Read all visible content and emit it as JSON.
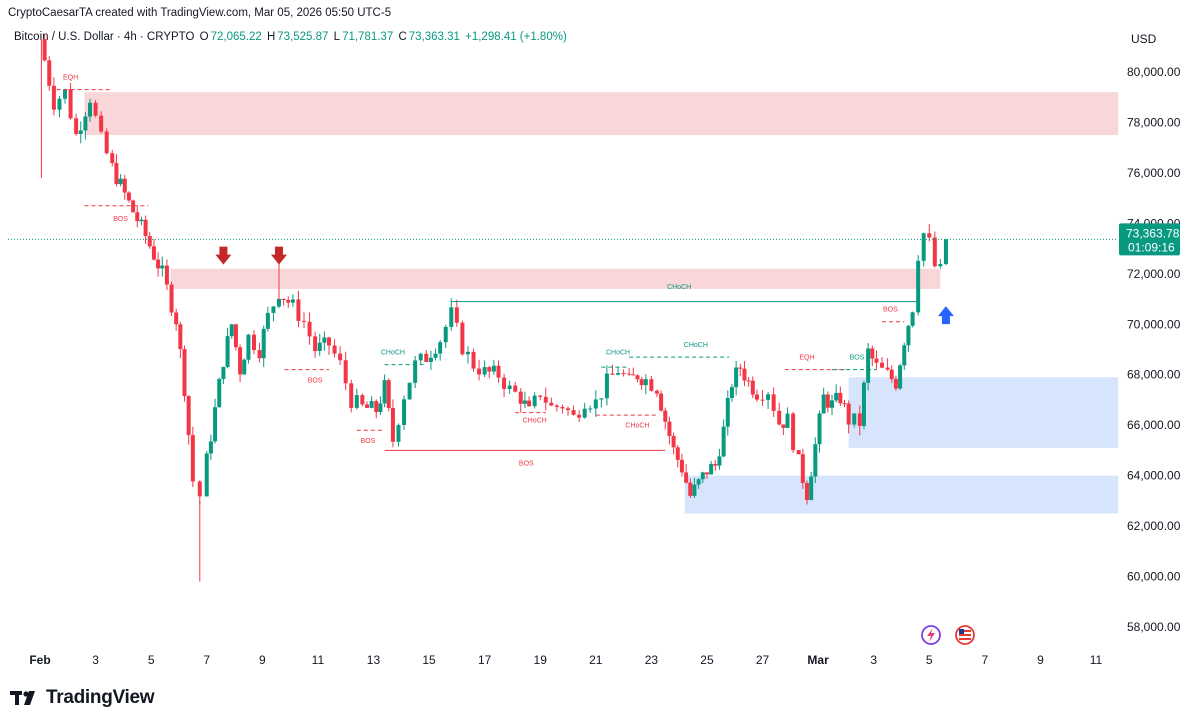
{
  "credit": "CryptoCaesarTA created with TradingView.com, Mar 05, 2026 05:50 UTC-5",
  "legend": {
    "symbol": "Bitcoin / U.S. Dollar · 4h · CRYPTO",
    "open_label": "O",
    "open": "72,065.22",
    "high_label": "H",
    "high": "73,525.87",
    "low_label": "L",
    "low": "71,781.37",
    "close_label": "C",
    "close": "73,363.31",
    "change": "+1,298.41 (+1.80%)"
  },
  "currency": "USD",
  "brand": "TradingView",
  "colors": {
    "up": "#089981",
    "down": "#f23645",
    "supply": "#f7c9cc",
    "demand": "#cfe0fb"
  },
  "chart_data": {
    "type": "candlestick",
    "ylim": [
      57000,
      81000
    ],
    "yticks": [
      "80,000.00",
      "78,000.00",
      "76,000.00",
      "74,000.00",
      "72,000.00",
      "70,000.00",
      "68,000.00",
      "66,000.00",
      "64,000.00",
      "62,000.00",
      "60,000.00",
      "58,000.00"
    ],
    "ytick_values": [
      80000,
      78000,
      76000,
      74000,
      72000,
      70000,
      68000,
      66000,
      64000,
      62000,
      60000,
      58000
    ],
    "xticks": [
      {
        "label": "Feb",
        "day": 1,
        "bold": true
      },
      {
        "label": "3",
        "day": 3
      },
      {
        "label": "5",
        "day": 5
      },
      {
        "label": "7",
        "day": 7
      },
      {
        "label": "9",
        "day": 9
      },
      {
        "label": "11",
        "day": 11
      },
      {
        "label": "13",
        "day": 13
      },
      {
        "label": "15",
        "day": 15
      },
      {
        "label": "17",
        "day": 17
      },
      {
        "label": "19",
        "day": 19
      },
      {
        "label": "21",
        "day": 21
      },
      {
        "label": "23",
        "day": 23
      },
      {
        "label": "25",
        "day": 25
      },
      {
        "label": "27",
        "day": 27
      },
      {
        "label": "Mar",
        "day": 29,
        "bold": true
      },
      {
        "label": "3",
        "day": 31
      },
      {
        "label": "5",
        "day": 33
      },
      {
        "label": "7",
        "day": 35
      },
      {
        "label": "9",
        "day": 37
      },
      {
        "label": "11",
        "day": 39
      }
    ],
    "last_price": "73,363.78",
    "countdown": "01:09:16",
    "last_value": 73363.78,
    "path": [
      [
        0.0,
        81300
      ],
      [
        0.5,
        78800
      ],
      [
        0.9,
        79200
      ],
      [
        1.3,
        77500
      ],
      [
        1.8,
        79000
      ],
      [
        2.2,
        77300
      ],
      [
        2.6,
        76200
      ],
      [
        3.2,
        74800
      ],
      [
        3.8,
        73500
      ],
      [
        4.4,
        72000
      ],
      [
        4.9,
        70200
      ],
      [
        5.2,
        67500
      ],
      [
        5.5,
        63800
      ],
      [
        5.75,
        63200
      ],
      [
        6.0,
        64600
      ],
      [
        6.3,
        66600
      ],
      [
        6.6,
        68600
      ],
      [
        6.9,
        70000
      ],
      [
        7.2,
        68200
      ],
      [
        7.5,
        69500
      ],
      [
        7.9,
        69000
      ],
      [
        8.2,
        70300
      ],
      [
        8.6,
        71300
      ],
      [
        9.1,
        70700
      ],
      [
        9.5,
        70100
      ],
      [
        9.9,
        69000
      ],
      [
        10.4,
        69200
      ],
      [
        10.8,
        68400
      ],
      [
        11.2,
        67000
      ],
      [
        11.6,
        66700
      ],
      [
        12.1,
        66600
      ],
      [
        12.4,
        67500
      ],
      [
        12.7,
        65400
      ],
      [
        13.1,
        67200
      ],
      [
        13.5,
        68400
      ],
      [
        13.9,
        68700
      ],
      [
        14.4,
        69400
      ],
      [
        14.8,
        70400
      ],
      [
        15.2,
        69100
      ],
      [
        15.6,
        68400
      ],
      [
        16.0,
        68100
      ],
      [
        16.5,
        68000
      ],
      [
        16.9,
        67400
      ],
      [
        17.3,
        67100
      ],
      [
        17.6,
        66500
      ],
      [
        18.0,
        67300
      ],
      [
        18.4,
        66700
      ],
      [
        18.8,
        66800
      ],
      [
        19.2,
        66300
      ],
      [
        19.6,
        67000
      ],
      [
        20.0,
        66900
      ],
      [
        20.4,
        67700
      ],
      [
        20.8,
        68200
      ],
      [
        21.2,
        67700
      ],
      [
        21.5,
        68000
      ],
      [
        21.8,
        67800
      ],
      [
        22.2,
        67500
      ],
      [
        22.5,
        66200
      ],
      [
        22.8,
        65000
      ],
      [
        23.1,
        64300
      ],
      [
        23.4,
        63200
      ],
      [
        23.7,
        63700
      ],
      [
        24.0,
        64200
      ],
      [
        24.3,
        64400
      ],
      [
        24.6,
        65800
      ],
      [
        24.9,
        67700
      ],
      [
        25.2,
        68300
      ],
      [
        25.5,
        67700
      ],
      [
        25.8,
        67300
      ],
      [
        26.2,
        67400
      ],
      [
        26.6,
        66100
      ],
      [
        26.9,
        66200
      ],
      [
        27.3,
        64500
      ],
      [
        27.6,
        63300
      ],
      [
        27.9,
        65200
      ],
      [
        28.2,
        67100
      ],
      [
        28.5,
        66800
      ],
      [
        28.8,
        67100
      ],
      [
        29.1,
        66200
      ],
      [
        29.5,
        66100
      ],
      [
        29.8,
        68900
      ],
      [
        30.1,
        68300
      ],
      [
        30.5,
        68000
      ],
      [
        30.8,
        67700
      ],
      [
        31.1,
        69400
      ],
      [
        31.4,
        70700
      ],
      [
        31.6,
        72800
      ],
      [
        31.8,
        73600
      ],
      [
        32.0,
        73200
      ],
      [
        32.2,
        72300
      ],
      [
        32.4,
        72100
      ],
      [
        32.6,
        73363
      ]
    ],
    "zones": [
      {
        "kind": "supply",
        "x0": 2.6,
        "x1": 39.8,
        "y0": 77500,
        "y1": 79200
      },
      {
        "kind": "supply",
        "x0": 5.7,
        "x1": 33.4,
        "y0": 71400,
        "y1": 72200
      },
      {
        "kind": "demand",
        "x0": 30.1,
        "x1": 39.8,
        "y0": 65100,
        "y1": 67900
      },
      {
        "kind": "demand",
        "x0": 24.2,
        "x1": 39.8,
        "y0": 62500,
        "y1": 64000
      }
    ],
    "lines": [
      {
        "x0": 0.6,
        "x1": 2.6,
        "y": 79300,
        "color": "#f23645",
        "dash": true,
        "label": "EQH",
        "lx": 1.1,
        "ly": 79700
      },
      {
        "x0": 1.6,
        "x1": 3.9,
        "y": 74700,
        "color": "#f23645",
        "dash": true,
        "label": "BOS",
        "lx": 2.9,
        "ly": 74100
      },
      {
        "x0": 14.8,
        "x1": 31.6,
        "y": 70900,
        "color": "#089981",
        "dash": false,
        "label": "CHoCH",
        "lx": 23.0,
        "ly": 71400
      },
      {
        "x0": 8.8,
        "x1": 10.4,
        "y": 68200,
        "color": "#f23645",
        "dash": true,
        "label": "BOS",
        "lx": 9.9,
        "ly": 67700
      },
      {
        "x0": 11.4,
        "x1": 12.4,
        "y": 65800,
        "color": "#f23645",
        "dash": true,
        "label": "BOS",
        "lx": 11.8,
        "ly": 65300
      },
      {
        "x0": 12.4,
        "x1": 22.5,
        "y": 65000,
        "color": "#f23645",
        "dash": false,
        "label": "BOS",
        "lx": 17.5,
        "ly": 64400
      },
      {
        "x0": 12.4,
        "x1": 13.8,
        "y": 68400,
        "color": "#089981",
        "dash": true,
        "label": "CHoCH",
        "lx": 12.7,
        "ly": 68800
      },
      {
        "x0": 17.1,
        "x1": 18.2,
        "y": 66500,
        "color": "#f23645",
        "dash": true,
        "label": "CHoCH",
        "lx": 17.8,
        "ly": 66100
      },
      {
        "x0": 20.0,
        "x1": 22.2,
        "y": 66400,
        "color": "#f23645",
        "dash": true,
        "label": "CHoCH",
        "lx": 21.5,
        "ly": 65900
      },
      {
        "x0": 20.2,
        "x1": 21.2,
        "y": 68300,
        "color": "#089981",
        "dash": true,
        "label": "CHoCH",
        "lx": 20.8,
        "ly": 68800
      },
      {
        "x0": 21.2,
        "x1": 24.8,
        "y": 68700,
        "color": "#089981",
        "dash": true,
        "label": "CHoCH",
        "lx": 23.6,
        "ly": 69100
      },
      {
        "x0": 26.8,
        "x1": 29.1,
        "y": 68200,
        "color": "#f23645",
        "dash": true,
        "label": "EQH",
        "lx": 27.6,
        "ly": 68600
      },
      {
        "x0": 28.5,
        "x1": 30.1,
        "y": 68200,
        "color": "#089981",
        "dash": true,
        "label": "BOS",
        "lx": 29.4,
        "ly": 68600
      },
      {
        "x0": 30.3,
        "x1": 31.1,
        "y": 70100,
        "color": "#f23645",
        "dash": true,
        "label": "BOS",
        "lx": 30.6,
        "ly": 70500
      }
    ],
    "arrows": [
      {
        "dir": "down",
        "color": "#c62828",
        "day": 6.6,
        "value": 72600
      },
      {
        "dir": "down",
        "color": "#c62828",
        "day": 8.6,
        "value": 72600
      },
      {
        "dir": "up",
        "color": "#2962ff",
        "day": 32.6,
        "value": 70400
      }
    ]
  }
}
